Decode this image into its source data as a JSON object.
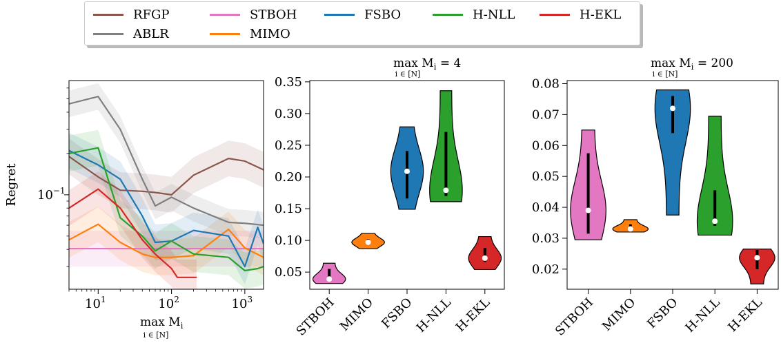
{
  "legend": [
    {
      "label": "RFGP",
      "color": "#8c564b"
    },
    {
      "label": "ABLR",
      "color": "#7f7f7f"
    },
    {
      "label": "STBOH",
      "color": "#e377c2"
    },
    {
      "label": "MIMO",
      "color": "#ff7f0e"
    },
    {
      "label": "FSBO",
      "color": "#1f77b4"
    },
    {
      "label": "H-NLL",
      "color": "#2ca02c"
    },
    {
      "label": "H-EKL",
      "color": "#d62728"
    }
  ],
  "chart_data": [
    {
      "type": "line",
      "ylabel": "Regret",
      "xlabel_main": "max M",
      "xlabel_sub_i": "i",
      "xlabel_under": "i ∈ [N]",
      "xscale": "log",
      "yscale": "log",
      "xlim": [
        4,
        1800
      ],
      "ylim": [
        0.0205,
        0.68
      ],
      "xticks": [
        10,
        100,
        1000
      ],
      "xtick_labels": [
        "10",
        "10",
        "10"
      ],
      "xtick_exponents": [
        "1",
        "2",
        "3"
      ],
      "ytick_label": "10",
      "ytick_exponent": "−1",
      "series": [
        {
          "name": "RFGP",
          "color": "#8c564b",
          "x": [
            4,
            10,
            20,
            40,
            60,
            100,
            200,
            600,
            1000,
            1800
          ],
          "y": [
            0.19,
            0.135,
            0.108,
            0.106,
            0.104,
            0.1,
            0.139,
            0.184,
            0.176,
            0.152
          ]
        },
        {
          "name": "ABLR",
          "color": "#7f7f7f",
          "x": [
            4,
            10,
            20,
            40,
            60,
            100,
            200,
            600,
            1000,
            1800
          ],
          "y": [
            0.46,
            0.52,
            0.3,
            0.13,
            0.083,
            0.096,
            0.08,
            0.063,
            0.062,
            0.06
          ]
        },
        {
          "name": "STBOH",
          "color": "#e377c2",
          "x": [
            4,
            1800
          ],
          "y": [
            0.0405,
            0.0405
          ]
        },
        {
          "name": "MIMO",
          "color": "#ff7f0e",
          "x": [
            4,
            10,
            20,
            40,
            60,
            100,
            200,
            600,
            1000,
            1800
          ],
          "y": [
            0.047,
            0.061,
            0.045,
            0.037,
            0.035,
            0.035,
            0.036,
            0.056,
            0.041,
            0.035
          ]
        },
        {
          "name": "FSBO",
          "color": "#1f77b4",
          "x": [
            4,
            10,
            20,
            40,
            60,
            100,
            200,
            600,
            1000,
            1500,
            1800
          ],
          "y": [
            0.21,
            0.165,
            0.13,
            0.07,
            0.045,
            0.046,
            0.055,
            0.05,
            0.03,
            0.058,
            0.044
          ]
        },
        {
          "name": "H-NLL",
          "color": "#2ca02c",
          "x": [
            4,
            10,
            20,
            40,
            60,
            100,
            200,
            600,
            1000,
            1500,
            1800
          ],
          "y": [
            0.2,
            0.22,
            0.068,
            0.05,
            0.039,
            0.046,
            0.037,
            0.035,
            0.028,
            0.029,
            0.03
          ]
        },
        {
          "name": "H-EKL",
          "color": "#d62728",
          "x": [
            4,
            10,
            20,
            40,
            60,
            100,
            120,
            220
          ],
          "y": [
            0.08,
            0.11,
            0.08,
            0.047,
            0.037,
            0.029,
            0.025,
            0.025
          ]
        }
      ]
    },
    {
      "type": "violin",
      "title_main": "max M",
      "title_sub_i": "i",
      "title_under": "i ∈ [N]",
      "title_value": " = 4",
      "ylim": [
        0.023,
        0.352
      ],
      "yticks": [
        "0.05",
        "0.10",
        "0.15",
        "0.20",
        "0.25",
        "0.30",
        "0.35"
      ],
      "categories": [
        "STBOH",
        "MIMO",
        "FSBO",
        "H-NLL",
        "H-EKL"
      ],
      "violins": [
        {
          "name": "STBOH",
          "color": "#e377c2",
          "min": 0.032,
          "max": 0.064,
          "median": 0.039,
          "q1": 0.035,
          "q3": 0.055
        },
        {
          "name": "MIMO",
          "color": "#ff7f0e",
          "min": 0.087,
          "max": 0.111,
          "median": 0.097,
          "q1": 0.094,
          "q3": 0.102
        },
        {
          "name": "FSBO",
          "color": "#1f77b4",
          "min": 0.149,
          "max": 0.279,
          "median": 0.209,
          "q1": 0.166,
          "q3": 0.241
        },
        {
          "name": "H-NLL",
          "color": "#2ca02c",
          "min": 0.161,
          "max": 0.336,
          "median": 0.179,
          "q1": 0.17,
          "q3": 0.271
        },
        {
          "name": "H-EKL",
          "color": "#d62728",
          "min": 0.054,
          "max": 0.106,
          "median": 0.072,
          "q1": 0.066,
          "q3": 0.088
        }
      ]
    },
    {
      "type": "violin",
      "title_main": "max M",
      "title_sub_i": "i",
      "title_under": "i ∈ [N]",
      "title_value": " = 200",
      "ylim": [
        0.0135,
        0.081
      ],
      "yticks": [
        "0.02",
        "0.03",
        "0.04",
        "0.05",
        "0.06",
        "0.07",
        "0.08"
      ],
      "categories": [
        "STBOH",
        "MIMO",
        "FSBO",
        "H-NLL",
        "H-EKL"
      ],
      "violins": [
        {
          "name": "STBOH",
          "color": "#e377c2",
          "min": 0.0295,
          "max": 0.065,
          "median": 0.039,
          "q1": 0.0315,
          "q3": 0.0575
        },
        {
          "name": "MIMO",
          "color": "#ff7f0e",
          "min": 0.032,
          "max": 0.036,
          "median": 0.033,
          "q1": 0.0325,
          "q3": 0.0345
        },
        {
          "name": "FSBO",
          "color": "#1f77b4",
          "min": 0.0375,
          "max": 0.078,
          "median": 0.072,
          "q1": 0.064,
          "q3": 0.076
        },
        {
          "name": "H-NLL",
          "color": "#2ca02c",
          "min": 0.031,
          "max": 0.0695,
          "median": 0.0355,
          "q1": 0.034,
          "q3": 0.0455
        },
        {
          "name": "H-EKL",
          "color": "#d62728",
          "min": 0.0152,
          "max": 0.0265,
          "median": 0.0237,
          "q1": 0.02,
          "q3": 0.0262
        }
      ]
    }
  ]
}
